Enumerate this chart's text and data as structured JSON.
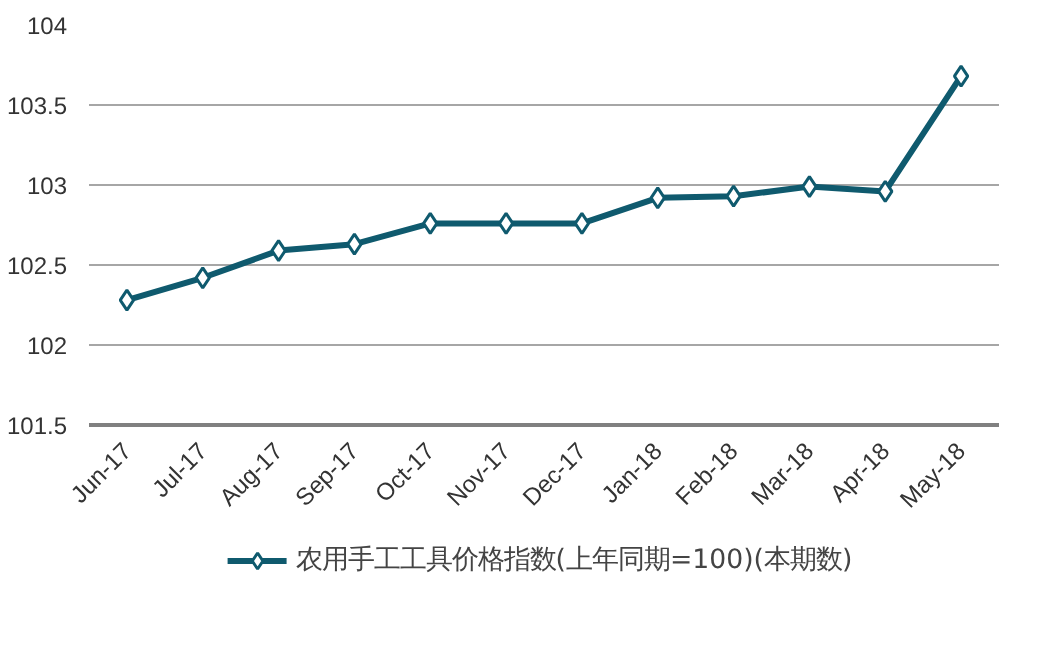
{
  "chart_data": {
    "type": "line",
    "categories": [
      "Jun-17",
      "Jul-17",
      "Aug-17",
      "Sep-17",
      "Oct-17",
      "Nov-17",
      "Dec-17",
      "Jan-18",
      "Feb-18",
      "Mar-18",
      "Apr-18",
      "May-18"
    ],
    "series": [
      {
        "name": "农用手工工具价格指数(上年同期=100)(本期数)",
        "color": "#0f5a6e",
        "values": [
          102.28,
          102.42,
          102.59,
          102.63,
          102.76,
          102.76,
          102.76,
          102.92,
          102.93,
          102.99,
          102.96,
          103.68
        ]
      }
    ],
    "ylim": [
      101.5,
      104
    ],
    "yticks": [
      101.5,
      102,
      102.5,
      103,
      103.5,
      104
    ],
    "grid": "y",
    "legend": "bottom",
    "marker": "diamond",
    "line_style": "solid"
  }
}
